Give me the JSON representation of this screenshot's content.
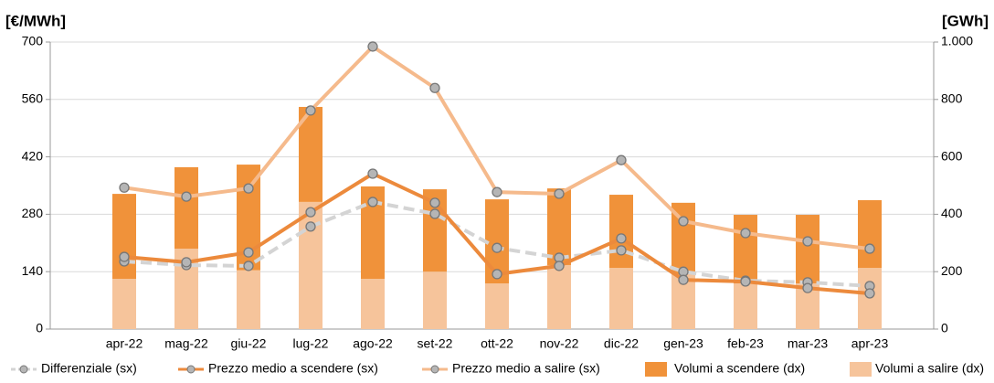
{
  "chart_data": {
    "type": "combo",
    "y_label": "[€/MWh]",
    "y2_label": "[GWh]",
    "categories": [
      "apr-22",
      "mag-22",
      "giu-22",
      "lug-22",
      "ago-22",
      "set-22",
      "ott-22",
      "nov-22",
      "dic-22",
      "gen-23",
      "feb-23",
      "mar-23",
      "apr-23"
    ],
    "series": [
      {
        "name": "Differenziale (sx)",
        "type": "line",
        "dashed": true,
        "color": "#d4d4d4",
        "values": [
          165,
          156,
          154,
          250,
          310,
          281,
          198,
          174,
          192,
          140,
          118,
          114,
          105
        ]
      },
      {
        "name": "Prezzo medio a scendere (sx)",
        "type": "line",
        "color": "#ec8a3c",
        "values": [
          176,
          163,
          187,
          285,
          379,
          308,
          134,
          154,
          221,
          120,
          116,
          100,
          87
        ]
      },
      {
        "name": "Prezzo medio a salire (sx)",
        "type": "line",
        "color": "#f5ba8c",
        "values": [
          345,
          323,
          343,
          533,
          689,
          588,
          334,
          330,
          412,
          263,
          234,
          214,
          196
        ]
      },
      {
        "name": "Volumi a scendere (dx)",
        "type": "bar",
        "axis": "y2",
        "color": "#f0923a",
        "values": [
          296,
          284,
          368,
          331,
          322,
          287,
          293,
          267,
          255,
          249,
          239,
          239,
          236
        ]
      },
      {
        "name": "Volumi a salire (dx)",
        "type": "bar",
        "axis": "y2",
        "color": "#f6c49b",
        "values": [
          175,
          280,
          205,
          443,
          175,
          200,
          159,
          223,
          213,
          191,
          159,
          159,
          213
        ]
      }
    ],
    "ylim": [
      0,
      700
    ],
    "yticks": [
      0,
      140,
      280,
      420,
      560,
      700
    ],
    "y2lim": [
      0,
      1000
    ],
    "y2ticks": [
      0,
      200,
      400,
      600,
      800,
      {
        "value": 1000,
        "label": "1.000"
      }
    ],
    "grid": true,
    "legend": "bottom",
    "marker_color": "#b5b5b5"
  }
}
